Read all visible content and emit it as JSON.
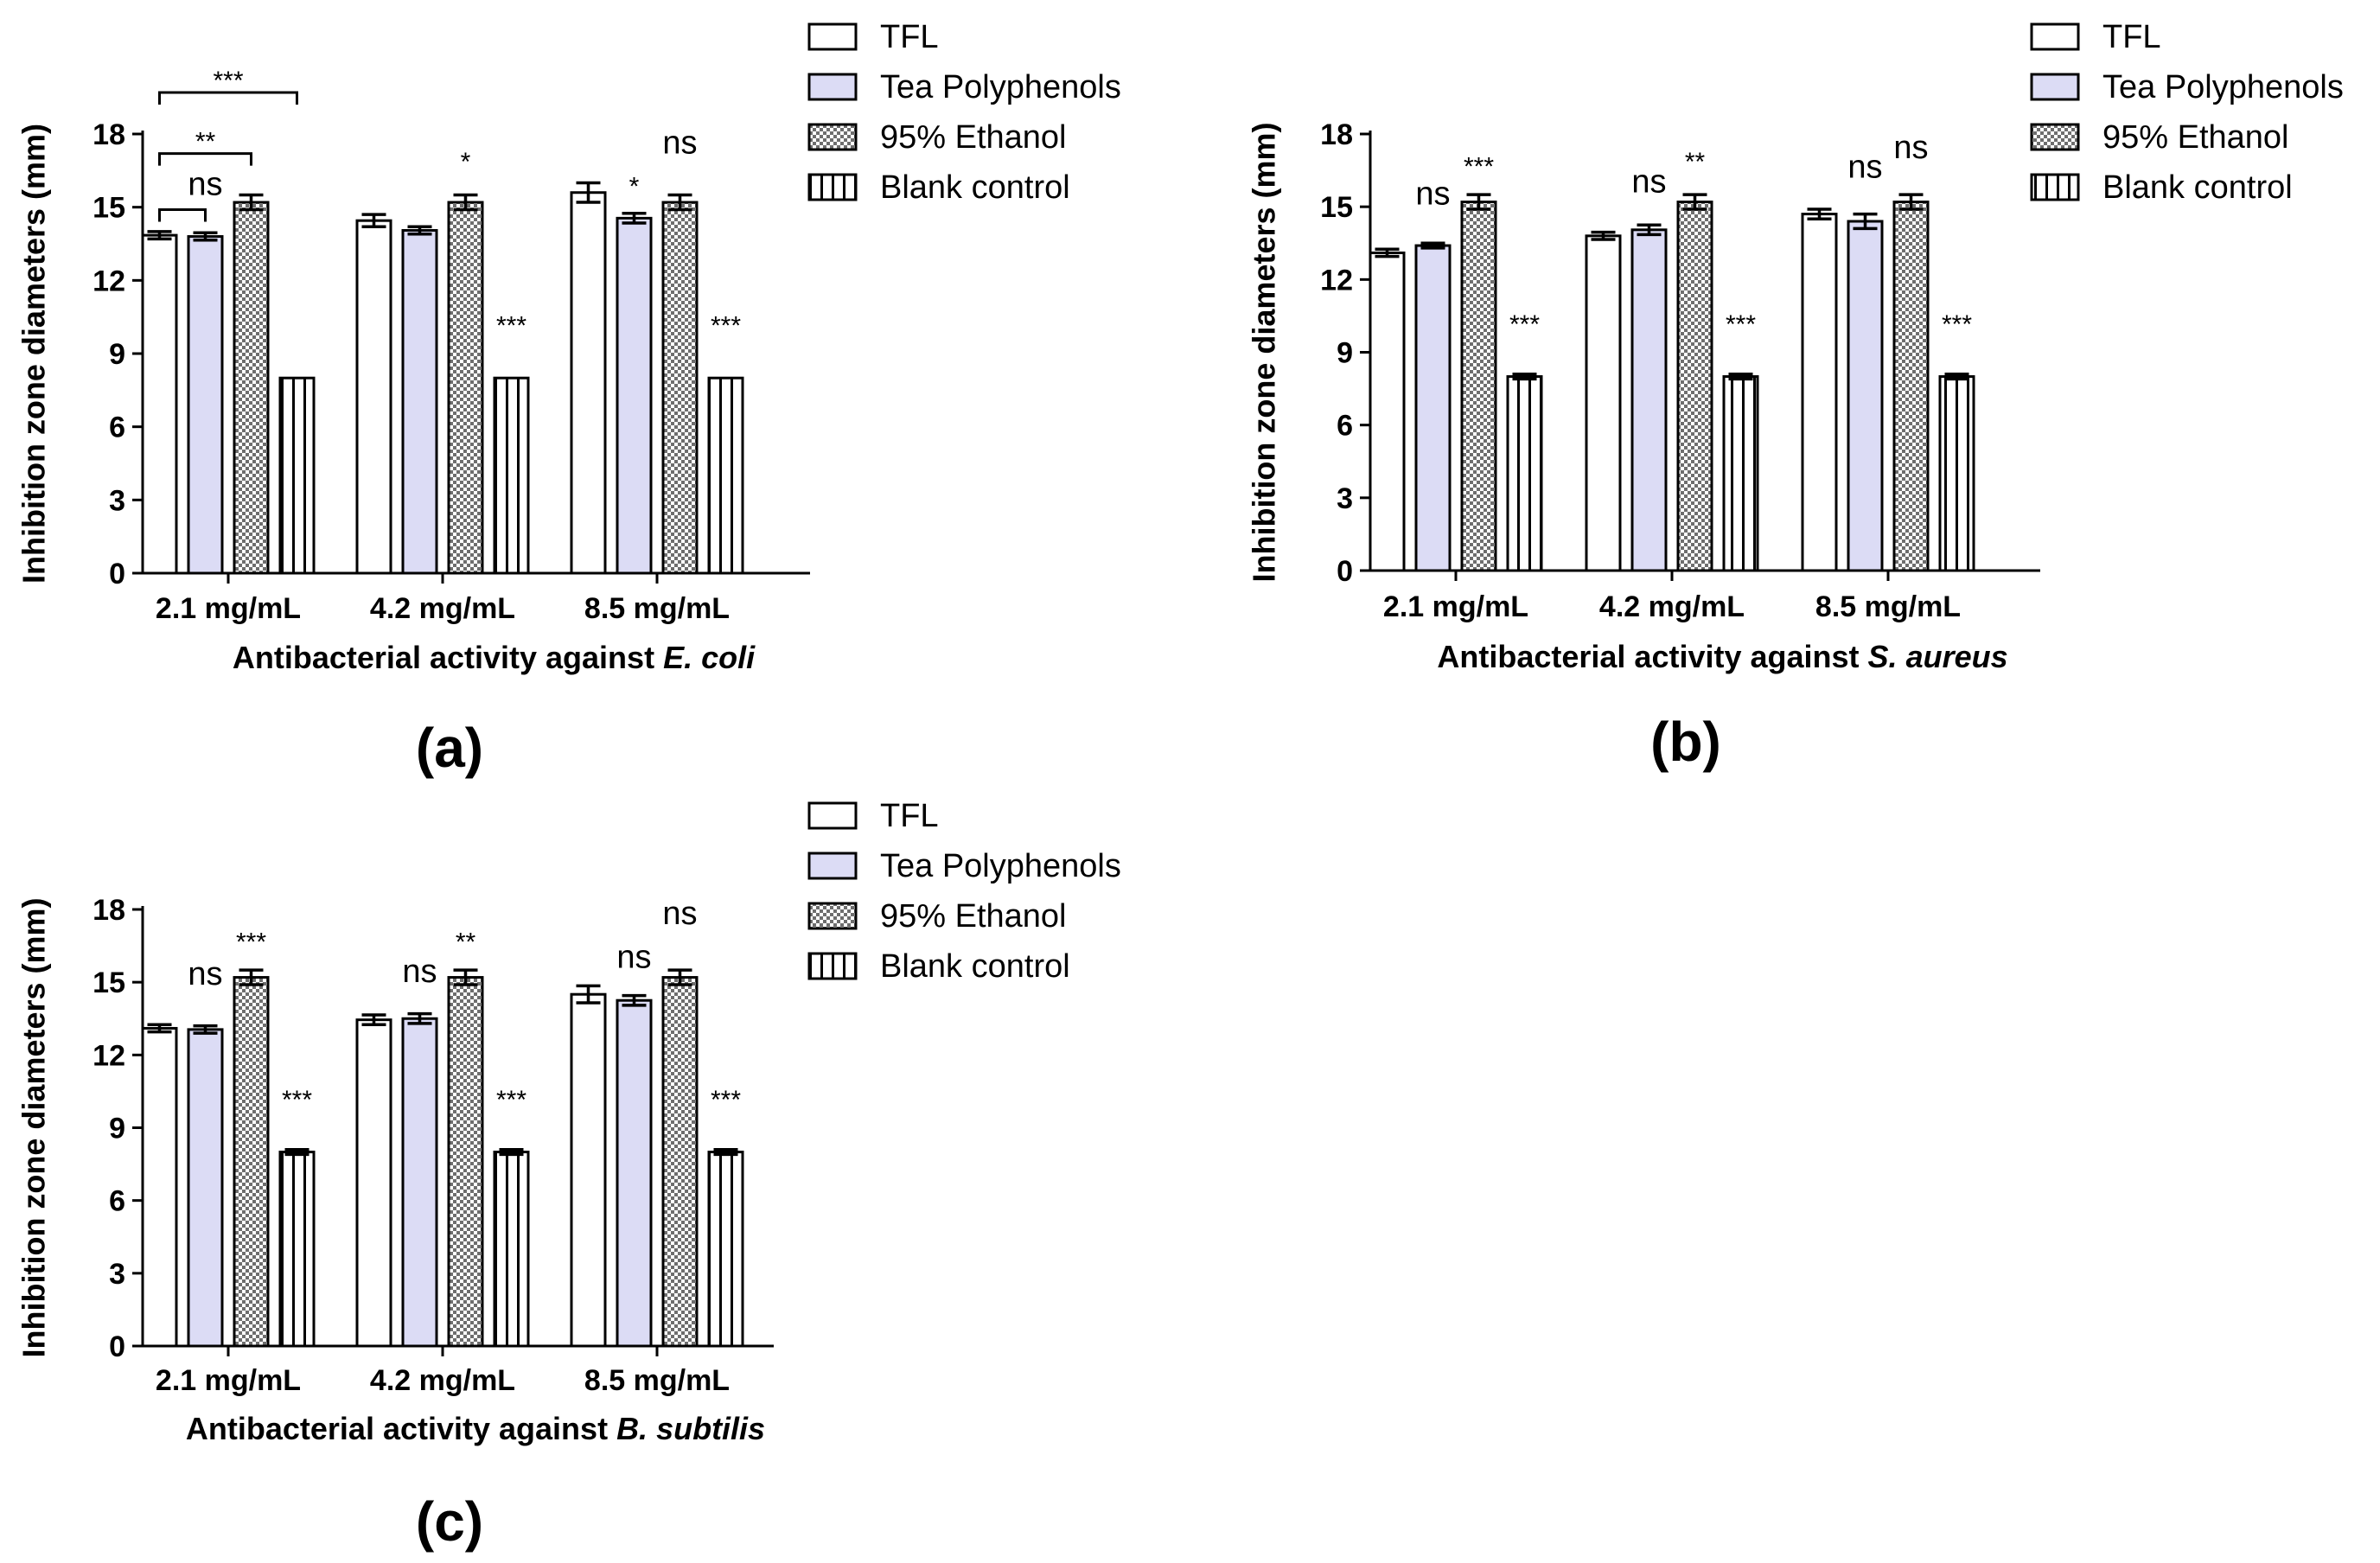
{
  "chart_data": [
    {
      "type": "bar",
      "panel_label": "(a)",
      "ylabel": "Inhibition zone diameters (mm)",
      "xlabel_prefix": "Antibacterial activity against ",
      "xlabel_organism": "E. coli",
      "ylim": [
        0,
        18
      ],
      "yticks": [
        "0",
        "3",
        "6",
        "9",
        "12",
        "15",
        "18"
      ],
      "categories": [
        "2.1 mg/mL",
        "4.2 mg/mL",
        "8.5 mg/mL"
      ],
      "series": [
        {
          "name": "TFL",
          "values": [
            13.85,
            14.45,
            15.6
          ],
          "errors": [
            0.15,
            0.25,
            0.4
          ]
        },
        {
          "name": "Tea Polyphenols",
          "values": [
            13.8,
            14.05,
            14.55
          ],
          "errors": [
            0.15,
            0.15,
            0.2
          ]
        },
        {
          "name": "95% Ethanol",
          "values": [
            15.2,
            15.2,
            15.2
          ],
          "errors": [
            0.3,
            0.3,
            0.3
          ]
        },
        {
          "name": "Blank control",
          "values": [
            8.0,
            8.0,
            8.0
          ],
          "errors": [
            0,
            0,
            0
          ]
        }
      ],
      "annotations": [
        {
          "text": "ns",
          "group": 0,
          "bar": 1,
          "y": 15.5
        },
        {
          "text": "*",
          "group": 1,
          "bar": 2,
          "y": 17.0
        },
        {
          "text": "***",
          "group": 1,
          "bar": 3,
          "y": 10.3
        },
        {
          "text": "*",
          "group": 2,
          "bar": 1,
          "y": 16.0
        },
        {
          "text": "ns",
          "group": 2,
          "bar": 2,
          "y": 17.2
        },
        {
          "text": "***",
          "group": 2,
          "bar": 3,
          "y": 10.3
        }
      ],
      "brackets": [
        {
          "text": "",
          "group": 0,
          "from": 0,
          "to": 1,
          "y": 14.9
        },
        {
          "text": "**",
          "group": 0,
          "from": 0,
          "to": 2,
          "y": 17.2
        },
        {
          "text": "***",
          "group": 0,
          "from": 0,
          "to": 3,
          "y": 19.7
        }
      ]
    },
    {
      "type": "bar",
      "panel_label": "(b)",
      "ylabel": "Inhibition zone diameters (mm)",
      "xlabel_prefix": "Antibacterial activity against ",
      "xlabel_organism": "S. aureus",
      "ylim": [
        0,
        18
      ],
      "yticks": [
        "0",
        "3",
        "6",
        "9",
        "12",
        "15",
        "18"
      ],
      "categories": [
        "2.1 mg/mL",
        "4.2 mg/mL",
        "8.5 mg/mL"
      ],
      "series": [
        {
          "name": "TFL",
          "values": [
            13.1,
            13.8,
            14.7
          ],
          "errors": [
            0.15,
            0.15,
            0.2
          ]
        },
        {
          "name": "Tea Polyphenols",
          "values": [
            13.4,
            14.05,
            14.4
          ],
          "errors": [
            0.1,
            0.2,
            0.3
          ]
        },
        {
          "name": "95% Ethanol",
          "values": [
            15.2,
            15.2,
            15.2
          ],
          "errors": [
            0.3,
            0.3,
            0.3
          ]
        },
        {
          "name": "Blank control",
          "values": [
            8.0,
            8.0,
            8.0
          ],
          "errors": [
            0.1,
            0.1,
            0.1
          ]
        }
      ],
      "annotations": [
        {
          "text": "ns",
          "group": 0,
          "bar": 1,
          "y": 15.1
        },
        {
          "text": "***",
          "group": 0,
          "bar": 2,
          "y": 16.8
        },
        {
          "text": "***",
          "group": 0,
          "bar": 3,
          "y": 10.3
        },
        {
          "text": "ns",
          "group": 1,
          "bar": 1,
          "y": 15.6
        },
        {
          "text": "**",
          "group": 1,
          "bar": 2,
          "y": 17.0
        },
        {
          "text": "***",
          "group": 1,
          "bar": 3,
          "y": 10.3
        },
        {
          "text": "ns",
          "group": 2,
          "bar": 1,
          "y": 16.2
        },
        {
          "text": "ns",
          "group": 2,
          "bar": 2,
          "y": 17.0
        },
        {
          "text": "***",
          "group": 2,
          "bar": 3,
          "y": 10.3
        }
      ],
      "brackets": []
    },
    {
      "type": "bar",
      "panel_label": "(c)",
      "ylabel": "Inhibition zone diameters (mm)",
      "xlabel_prefix": "Antibacterial activity against ",
      "xlabel_organism": "B. subtilis",
      "ylim": [
        0,
        18
      ],
      "yticks": [
        "0",
        "3",
        "6",
        "9",
        "12",
        "15",
        "18"
      ],
      "categories": [
        "2.1 mg/mL",
        "4.2 mg/mL",
        "8.5 mg/mL"
      ],
      "series": [
        {
          "name": "TFL",
          "values": [
            13.1,
            13.45,
            14.5
          ],
          "errors": [
            0.15,
            0.2,
            0.35
          ]
        },
        {
          "name": "Tea Polyphenols",
          "values": [
            13.05,
            13.5,
            14.25
          ],
          "errors": [
            0.15,
            0.2,
            0.2
          ]
        },
        {
          "name": "95% Ethanol",
          "values": [
            15.2,
            15.2,
            15.2
          ],
          "errors": [
            0.3,
            0.3,
            0.3
          ]
        },
        {
          "name": "Blank control",
          "values": [
            8.0,
            8.0,
            8.0
          ],
          "errors": [
            0.1,
            0.1,
            0.1
          ]
        }
      ],
      "annotations": [
        {
          "text": "ns",
          "group": 0,
          "bar": 1,
          "y": 14.9
        },
        {
          "text": "***",
          "group": 0,
          "bar": 2,
          "y": 16.8
        },
        {
          "text": "***",
          "group": 0,
          "bar": 3,
          "y": 10.3
        },
        {
          "text": "ns",
          "group": 1,
          "bar": 1,
          "y": 15.0
        },
        {
          "text": "**",
          "group": 1,
          "bar": 2,
          "y": 16.8
        },
        {
          "text": "***",
          "group": 1,
          "bar": 3,
          "y": 10.3
        },
        {
          "text": "ns",
          "group": 2,
          "bar": 1,
          "y": 15.6
        },
        {
          "text": "ns",
          "group": 2,
          "bar": 2,
          "y": 17.4
        },
        {
          "text": "***",
          "group": 2,
          "bar": 3,
          "y": 10.3
        }
      ],
      "brackets": []
    }
  ],
  "legend_labels": [
    "TFL",
    "Tea Polyphenols",
    "95% Ethanol",
    "Blank control"
  ],
  "series_fills": [
    "#ffffff",
    "#dcdcf5",
    "#888888",
    "#ffffff"
  ]
}
